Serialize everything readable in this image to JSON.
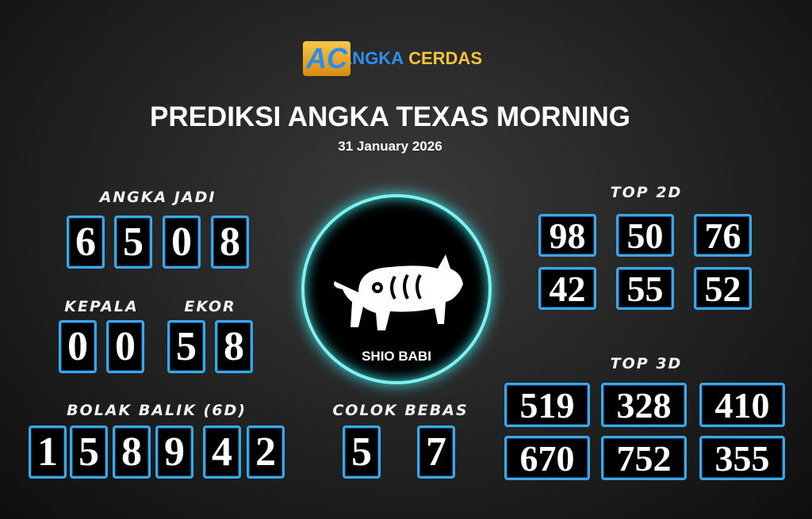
{
  "logo": {
    "text1": "ANGKA",
    "text2": "CERDAS",
    "mark": "AC"
  },
  "title": "PREDIKSI ANGKA TEXAS MORNING",
  "date": "31 January 2026",
  "angka_jadi": {
    "label": "ANGKA JADI",
    "digits": [
      "6",
      "5",
      "0",
      "8"
    ]
  },
  "kepala": {
    "label": "KEPALA",
    "digits": [
      "0",
      "0"
    ]
  },
  "ekor": {
    "label": "EKOR",
    "digits": [
      "5",
      "8"
    ]
  },
  "bolak_balik": {
    "label": "BOLAK BALIK (6D)",
    "digits": [
      "1",
      "5",
      "8",
      "9",
      "4",
      "2"
    ]
  },
  "colok_bebas": {
    "label": "COLOK BEBAS",
    "digits": [
      "5",
      "7"
    ]
  },
  "shio": {
    "label": "SHIO BABI",
    "icon": "pig-icon"
  },
  "top2d": {
    "label": "TOP 2D",
    "values": [
      "98",
      "50",
      "76",
      "42",
      "55",
      "52"
    ]
  },
  "top3d": {
    "label": "TOP 3D",
    "values": [
      "519",
      "328",
      "410",
      "670",
      "752",
      "355"
    ]
  }
}
